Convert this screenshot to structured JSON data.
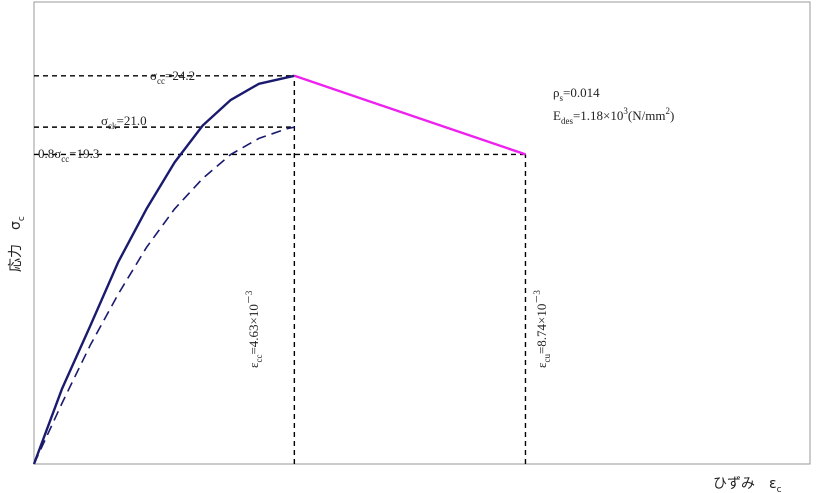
{
  "chart_data": {
    "type": "line",
    "xlabel": "ひずみ　ε",
    "xlabel_sub": "c",
    "ylabel": "応力　σ",
    "ylabel_sub": "c",
    "xlim": [
      0,
      0.0138
    ],
    "ylim": [
      0,
      28.8
    ],
    "series": [
      {
        "role": "main-curve",
        "color": "#1a1a6e",
        "style": "solid",
        "x": [
          0,
          0.0005,
          0.001,
          0.0015,
          0.002,
          0.0025,
          0.003,
          0.0035,
          0.004,
          0.0045,
          0.00463
        ],
        "y": [
          0,
          4.7,
          8.6,
          12.6,
          15.9,
          18.8,
          21.1,
          22.7,
          23.7,
          24.1,
          24.2
        ]
      },
      {
        "role": "dashed-curve",
        "color": "#1a1a6e",
        "style": "dashed",
        "x": [
          0,
          0.0005,
          0.001,
          0.0015,
          0.002,
          0.0025,
          0.003,
          0.0035,
          0.004,
          0.0045,
          0.00463
        ],
        "y": [
          0,
          3.8,
          7.4,
          10.6,
          13.5,
          15.9,
          17.8,
          19.3,
          20.3,
          20.9,
          21.0
        ]
      },
      {
        "role": "descending-branch",
        "color": "#ee22ee",
        "style": "solid",
        "x": [
          0.00463,
          0.00874
        ],
        "y": [
          24.2,
          19.3
        ]
      }
    ],
    "reference_lines": [
      {
        "orientation": "horizontal",
        "y": 24.2,
        "x_end": 0.00463
      },
      {
        "orientation": "horizontal",
        "y": 21.0,
        "x_end": 0.00463
      },
      {
        "orientation": "horizontal",
        "y": 19.3,
        "x_end": 0.00874
      },
      {
        "orientation": "vertical",
        "x": 0.00463,
        "y_end": 24.2
      },
      {
        "orientation": "vertical",
        "x": 0.00874,
        "y_end": 19.3
      }
    ],
    "annotations": {
      "scc": {
        "pre": "σ",
        "sub": "cc",
        "post": "=24.2"
      },
      "sck": {
        "pre": "σ",
        "sub": "ck",
        "post": "=21.0"
      },
      "s08": {
        "pre": "0.8σ",
        "sub": "cc",
        "post": "=19.3"
      },
      "rho": {
        "pre": "ρ",
        "sub": "s",
        "post": "=0.014"
      },
      "edes": {
        "pre": "E",
        "sub": "des",
        "post": "=1.18×10",
        "sup": "3",
        "tail": "(N/mm",
        "sup2": "2",
        "end": ")"
      },
      "ecc": {
        "pre": "ε",
        "sub": "cc",
        "post": "=4.63×10",
        "sup": "－3"
      },
      "ecu": {
        "pre": "ε",
        "sub": "cu",
        "post": "=8.74×10",
        "sup": "－3"
      }
    }
  }
}
